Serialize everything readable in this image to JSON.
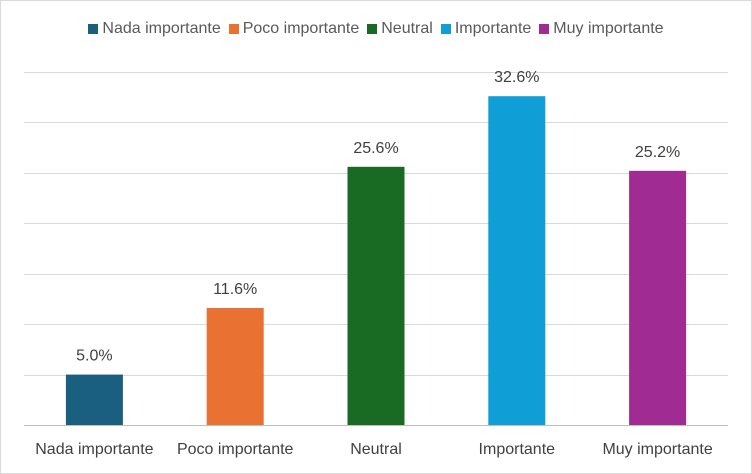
{
  "chart_data": {
    "type": "bar",
    "title": "",
    "categories": [
      "Nada importante",
      "Poco importante",
      "Neutral",
      "Importante",
      "Muy importante"
    ],
    "values": [
      5.0,
      11.6,
      25.6,
      32.6,
      25.2
    ],
    "data_labels": [
      "5.0%",
      "11.6%",
      "25.6%",
      "32.6%",
      "25.2%"
    ],
    "colors": [
      "#1a5e80",
      "#e97132",
      "#196b24",
      "#0f9ed5",
      "#a02b93"
    ],
    "xlabel": "",
    "ylabel": "",
    "ylim": [
      0,
      35
    ],
    "ytick_step": 5,
    "grid": true,
    "legend_position": "top"
  }
}
